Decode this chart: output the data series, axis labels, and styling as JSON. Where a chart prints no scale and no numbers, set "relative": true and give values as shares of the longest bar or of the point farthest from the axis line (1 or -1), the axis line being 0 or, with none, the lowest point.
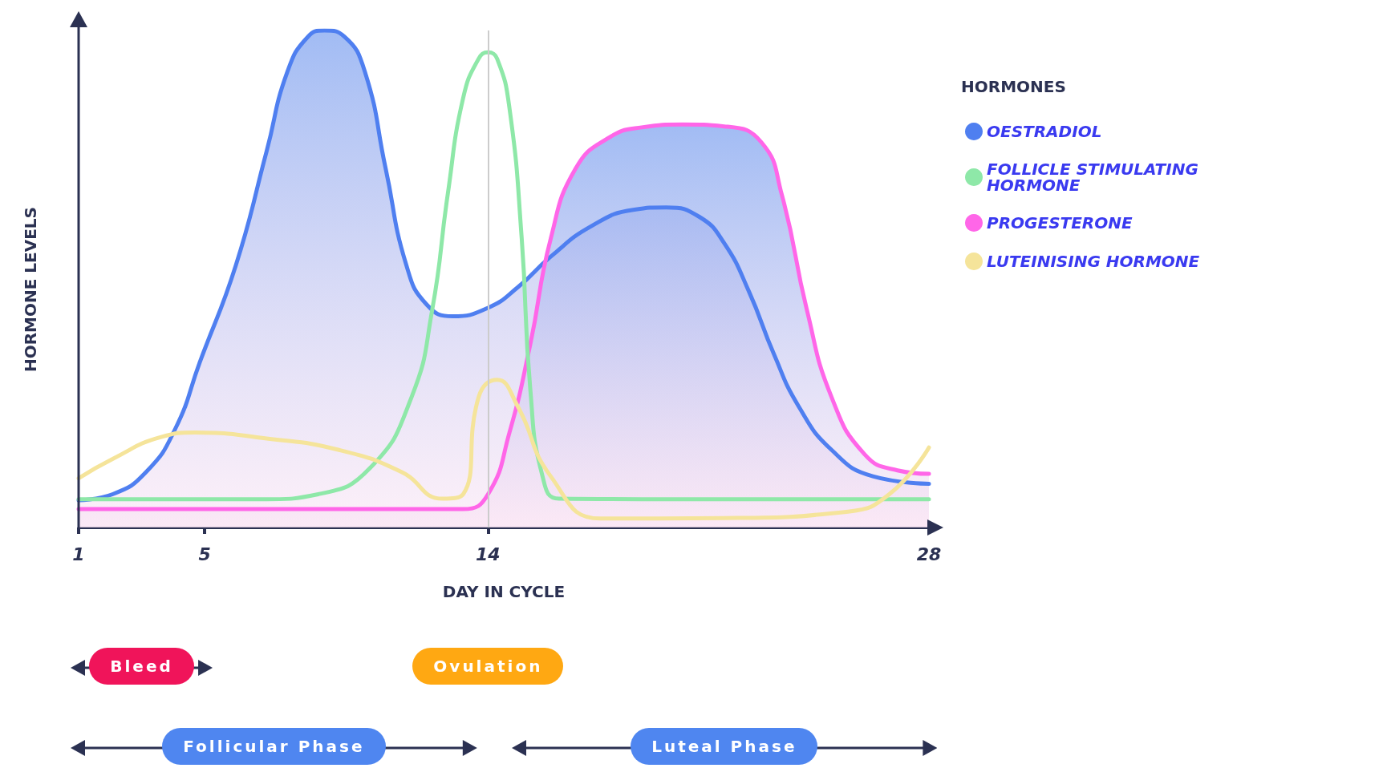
{
  "chart_data": {
    "type": "line",
    "relative": true,
    "xlabel": "DAY IN CYCLE",
    "ylabel": "HORMONE LEVELS",
    "legend_title": "HORMONES",
    "legend": "top right",
    "marker": "none",
    "line_style": "solid",
    "grid": false,
    "xlim": [
      1,
      28
    ],
    "xticks": [
      1,
      5,
      14,
      28
    ],
    "ref_lines": [
      {
        "axis": "x",
        "value": 14,
        "label": null,
        "color": "#cccccc"
      }
    ],
    "annotations": [
      "Bleed",
      "Ovulation",
      "Follicular Phase",
      "Luteal Phase"
    ],
    "series": [
      {
        "name": "OESTRADIOL",
        "type": "area",
        "color": "#4f7ff0",
        "x": [
          1,
          2.08,
          3.15,
          4.08,
          4.85,
          5.99,
          6.97,
          7.63,
          8.29,
          8.81,
          9.43,
          10.09,
          10.75,
          11.41,
          12.06,
          12.88,
          14,
          14.94,
          15.99,
          17.3,
          18.61,
          19.66,
          20.71,
          21.5,
          22.29,
          23.07,
          23.86,
          24.91,
          26.22,
          28
        ],
        "values": [
          0.055,
          0.067,
          0.112,
          0.2,
          0.333,
          0.527,
          0.757,
          0.917,
          0.988,
          1,
          0.988,
          0.917,
          0.722,
          0.527,
          0.448,
          0.425,
          0.442,
          0.483,
          0.545,
          0.607,
          0.639,
          0.644,
          0.625,
          0.572,
          0.474,
          0.35,
          0.244,
          0.156,
          0.103,
          0.088
        ]
      },
      {
        "name": "FOLLICLE STIMULATING HORMONE",
        "color": "#8ee8a8",
        "x": [
          1,
          6.97,
          8.61,
          10.26,
          11.57,
          12.23,
          12.72,
          13.21,
          13.7,
          14,
          14.29,
          14.68,
          15.07,
          15.34,
          15.73,
          16.25,
          18.88,
          28
        ],
        "values": [
          0.057,
          0.057,
          0.067,
          0.12,
          0.262,
          0.439,
          0.67,
          0.864,
          0.943,
          0.956,
          0.943,
          0.844,
          0.581,
          0.28,
          0.103,
          0.058,
          0.057,
          0.057
        ]
      },
      {
        "name": "PROGESTERONE",
        "type": "area",
        "color": "#ff66e8",
        "x": [
          1,
          13.21,
          14,
          14.68,
          15.34,
          15.99,
          16.78,
          17.83,
          18.88,
          20.19,
          21.5,
          22.68,
          23.33,
          24.12,
          24.91,
          25.96,
          27,
          28
        ],
        "values": [
          0.037,
          0.037,
          0.067,
          0.191,
          0.368,
          0.581,
          0.722,
          0.784,
          0.805,
          0.811,
          0.807,
          0.775,
          0.669,
          0.439,
          0.262,
          0.147,
          0.115,
          0.108
        ]
      },
      {
        "name": "LUTEINISING HORMONE",
        "color": "#f5e49a",
        "x": [
          1,
          2.08,
          3.62,
          4.69,
          6.97,
          9.27,
          11.24,
          12.56,
          13.21,
          13.7,
          14.29,
          14.94,
          15.99,
          17.57,
          21.5,
          25.43,
          26.74,
          28
        ],
        "values": [
          0.099,
          0.138,
          0.182,
          0.191,
          0.179,
          0.156,
          0.112,
          0.058,
          0.067,
          0.262,
          0.297,
          0.244,
          0.103,
          0.018,
          0.019,
          0.032,
          0.067,
          0.161
        ]
      }
    ]
  }
}
